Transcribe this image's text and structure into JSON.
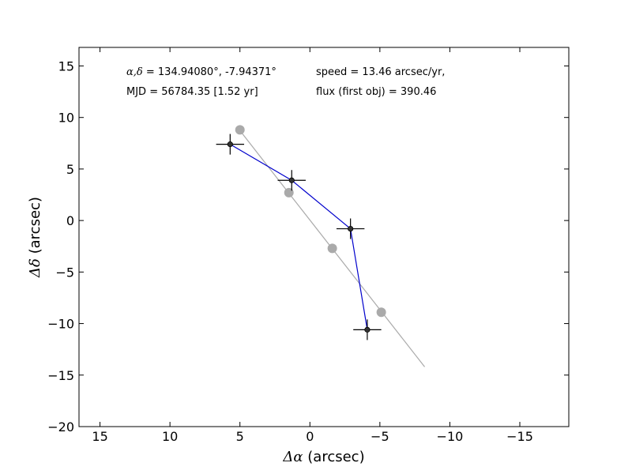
{
  "chart_data": {
    "type": "scatter",
    "xlabel_symbol": "Δα",
    "xlabel_unit": " (arcsec)",
    "ylabel_symbol": "Δδ",
    "ylabel_unit": " (arcsec)",
    "xlim": [
      16.5,
      -18.5
    ],
    "ylim": [
      -20,
      16.8
    ],
    "x_inverted": true,
    "grid": false,
    "xticks": [
      15,
      10,
      5,
      0,
      -5,
      -10,
      -15
    ],
    "yticks": [
      15,
      10,
      5,
      0,
      -5,
      -10,
      -15,
      -20
    ],
    "xtick_labels": [
      "15",
      "10",
      "5",
      "0",
      "−5",
      "−10",
      "−15"
    ],
    "ytick_labels": [
      "15",
      "10",
      "5",
      "0",
      "−5",
      "−10",
      "−15",
      "−20"
    ],
    "annotations": {
      "coords_symbol": "α,δ",
      "coords_value": " = 134.94080°, -7.94371°",
      "mjd": "MJD = 56784.35 [1.52 yr]",
      "speed": "speed = 13.46 arcsec/yr,",
      "flux": "flux (first obj) = 390.46"
    },
    "series": [
      {
        "kind": "observed",
        "color": "#0000cc",
        "marker_color": "#333333",
        "points": [
          {
            "x": 5.7,
            "y": 7.4,
            "xerr": 1.0,
            "yerr": 1.0
          },
          {
            "x": 1.3,
            "y": 3.9,
            "xerr": 1.0,
            "yerr": 1.0
          },
          {
            "x": -2.9,
            "y": -0.8,
            "xerr": 1.0,
            "yerr": 1.0
          },
          {
            "x": -4.1,
            "y": -10.6,
            "xerr": 1.0,
            "yerr": 1.0
          }
        ]
      },
      {
        "kind": "fit",
        "color": "#aaaaaa",
        "line": [
          {
            "x": 5.1,
            "y": 8.9
          },
          {
            "x": -8.2,
            "y": -14.2
          }
        ],
        "points": [
          {
            "x": 5.0,
            "y": 8.8
          },
          {
            "x": 1.5,
            "y": 2.7
          },
          {
            "x": -1.6,
            "y": -2.7
          },
          {
            "x": -5.1,
            "y": -8.9
          }
        ]
      }
    ]
  }
}
